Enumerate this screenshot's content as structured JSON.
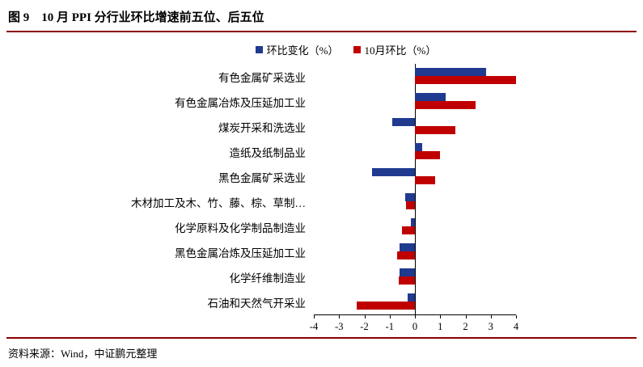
{
  "header": {
    "title": "图 9　10 月 PPI 分行业环比增速前五位、后五位"
  },
  "footer": {
    "source": "资料来源：Wind，中证鹏元整理"
  },
  "styles": {
    "accent_rule_color": "#8B0000"
  },
  "chart_data": {
    "type": "bar",
    "orientation": "horizontal",
    "title": "图 9　10 月 PPI 分行业环比增速前五位、后五位",
    "categories": [
      "有色金属矿采选业",
      "有色金属冶炼及压延加工业",
      "煤炭开采和洗选业",
      "造纸及纸制品业",
      "黑色金属矿采选业",
      "木材加工及木、竹、藤、棕、草制…",
      "化学原料及化学制品制造业",
      "黑色金属冶炼及压延加工业",
      "化学纤维制造业",
      "石油和天然气开采业"
    ],
    "series": [
      {
        "name": "环比变化（%）",
        "color": "#1F3A8F",
        "values": [
          2.8,
          1.2,
          -0.9,
          0.3,
          -1.7,
          -0.4,
          -0.15,
          -0.6,
          -0.6,
          -0.3
        ]
      },
      {
        "name": "10月环比（%）",
        "color": "#C00000",
        "values": [
          4.0,
          2.4,
          1.6,
          1.0,
          0.8,
          -0.35,
          -0.5,
          -0.7,
          -0.65,
          -2.3
        ]
      }
    ],
    "xlabel": "",
    "ylabel": "",
    "xlim": [
      -4,
      4
    ],
    "xticks": [
      -4,
      -3,
      -2,
      -1,
      0,
      1,
      2,
      3,
      4
    ],
    "grid": false,
    "legend_position": "top"
  }
}
